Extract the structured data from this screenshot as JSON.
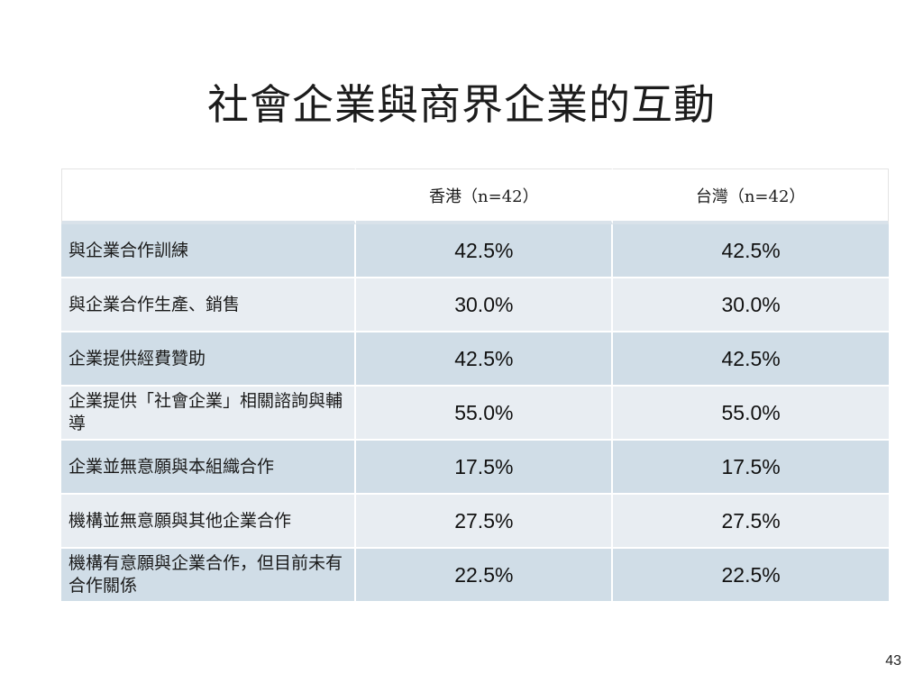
{
  "title": "社會企業與商界企業的互動",
  "table": {
    "columns": [
      "",
      "香港（n=42）",
      "台灣（n=42）"
    ],
    "rows": [
      {
        "label": "與企業合作訓練",
        "hk": "42.5%",
        "tw": "42.5%"
      },
      {
        "label": "與企業合作生產、銷售",
        "hk": "30.0%",
        "tw": "30.0%"
      },
      {
        "label": "企業提供經費贊助",
        "hk": "42.5%",
        "tw": "42.5%"
      },
      {
        "label": "企業提供「社會企業」相關諮詢與輔導",
        "hk": "55.0%",
        "tw": "55.0%"
      },
      {
        "label": "企業並無意願與本組織合作",
        "hk": "17.5%",
        "tw": "17.5%"
      },
      {
        "label": "機構並無意願與其他企業合作",
        "hk": "27.5%",
        "tw": "27.5%"
      },
      {
        "label": "機構有意願與企業合作，但目前未有合作關係",
        "hk": "22.5%",
        "tw": "22.5%"
      }
    ]
  },
  "page_number": "43"
}
